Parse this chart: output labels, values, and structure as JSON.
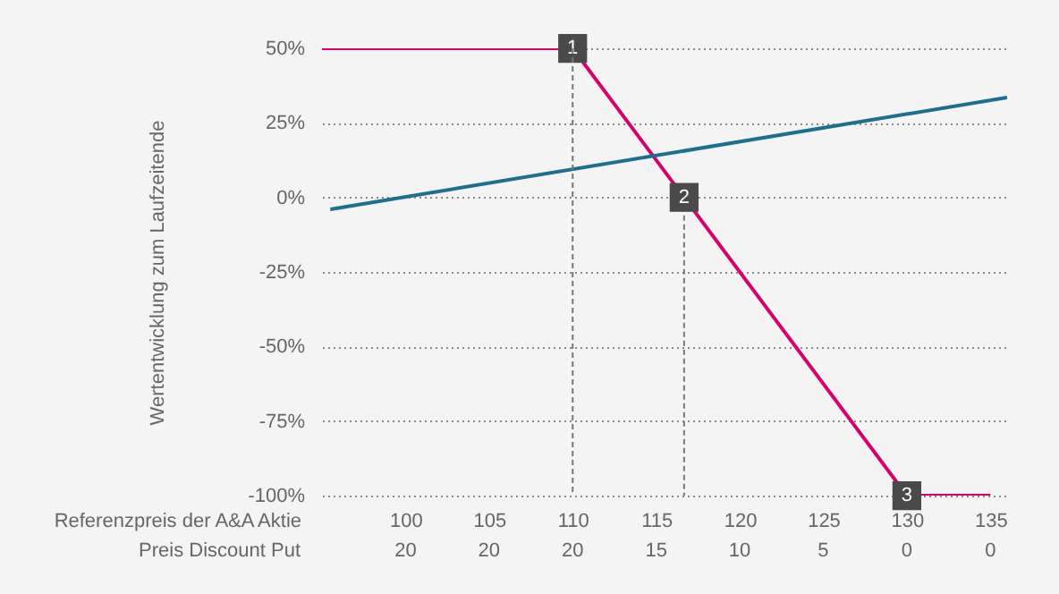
{
  "chart_data": {
    "type": "line",
    "xlabel": "Referenzpreis der A&A Aktie",
    "ylabel": "Wertentwicklung zum Laufzeitende",
    "series": [
      {
        "color": "#d6006e",
        "x": [
          95,
          110,
          116.67,
          130,
          135
        ],
        "values": [
          50,
          50,
          0,
          -100,
          -100
        ]
      },
      {
        "color": "#1b6f8f",
        "x": [
          95.5,
          136
        ],
        "values": [
          -4,
          33.5
        ]
      }
    ],
    "xlim": [
      95,
      136
    ],
    "xticks": [
      100,
      105,
      110,
      115,
      120,
      125,
      130,
      135
    ],
    "ylim": [
      -100,
      50
    ],
    "yticks": [
      {
        "value": -100,
        "label": "-100%"
      },
      {
        "value": -75,
        "label": "-75%"
      },
      {
        "value": -50,
        "label": "-50%"
      },
      {
        "value": -25,
        "label": "-25%"
      },
      {
        "value": 0,
        "label": "0%"
      },
      {
        "value": 25,
        "label": "25%"
      },
      {
        "value": 50,
        "label": "50%"
      }
    ],
    "grid": "y",
    "ref_lines": [
      {
        "axis": "x",
        "value": 110,
        "color": "#777777",
        "line_style": "dashed"
      }
    ],
    "annotations": [
      {
        "text": "1",
        "x": 110,
        "y": 50
      },
      {
        "text": "2",
        "x": 116.67,
        "y": 0
      },
      {
        "text": "3",
        "x": 130,
        "y": -100
      },
      "Preis Discount Put",
      "20",
      "20",
      "20",
      "15",
      "10",
      "5",
      "0",
      "0"
    ]
  }
}
